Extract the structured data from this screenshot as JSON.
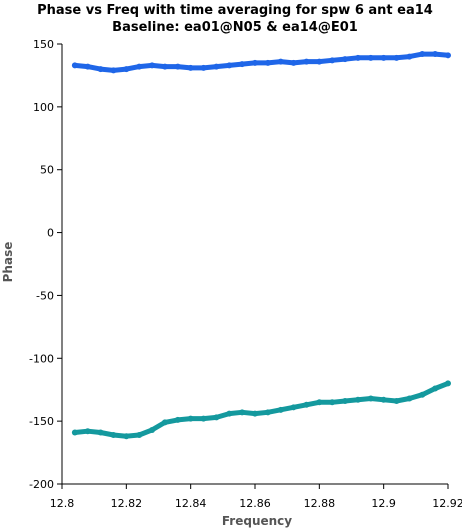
{
  "chart_data": {
    "type": "scatter",
    "title": "Phase vs Freq with time averaging for spw 6 ant ea14",
    "subtitle": "Baseline: ea01@N05 & ea14@E01",
    "xlabel": "Frequency",
    "ylabel": "Phase",
    "xlim": [
      12.8,
      12.92
    ],
    "ylim": [
      -200,
      150
    ],
    "xticks": [
      "12.8",
      "12.82",
      "12.84",
      "12.86",
      "12.88",
      "12.9",
      "12.92"
    ],
    "yticks": [
      "150",
      "100",
      "50",
      "0",
      "-50",
      "-100",
      "-150",
      "-200"
    ],
    "grid": false,
    "series": [
      {
        "color": "#1f66e8",
        "x": [
          12.804,
          12.808,
          12.812,
          12.816,
          12.82,
          12.824,
          12.828,
          12.832,
          12.836,
          12.84,
          12.844,
          12.848,
          12.852,
          12.856,
          12.86,
          12.864,
          12.868,
          12.872,
          12.876,
          12.88,
          12.884,
          12.888,
          12.892,
          12.896,
          12.9,
          12.904,
          12.908,
          12.912,
          12.916,
          12.92
        ],
        "y": [
          133,
          132,
          130,
          129,
          130,
          132,
          133,
          132,
          132,
          131,
          131,
          132,
          133,
          134,
          135,
          135,
          136,
          135,
          136,
          136,
          137,
          138,
          139,
          139,
          139,
          139,
          140,
          142,
          142,
          141
        ]
      },
      {
        "color": "#14999e",
        "x": [
          12.804,
          12.808,
          12.812,
          12.816,
          12.82,
          12.824,
          12.828,
          12.832,
          12.836,
          12.84,
          12.844,
          12.848,
          12.852,
          12.856,
          12.86,
          12.864,
          12.868,
          12.872,
          12.876,
          12.88,
          12.884,
          12.888,
          12.892,
          12.896,
          12.9,
          12.904,
          12.908,
          12.912,
          12.916,
          12.92
        ],
        "y": [
          -159,
          -158,
          -159,
          -161,
          -162,
          -161,
          -157,
          -151,
          -149,
          -148,
          -148,
          -147,
          -144,
          -143,
          -144,
          -143,
          -141,
          -139,
          -137,
          -135,
          -135,
          -134,
          -133,
          -132,
          -133,
          -134,
          -132,
          -129,
          -124,
          -120
        ]
      }
    ]
  }
}
